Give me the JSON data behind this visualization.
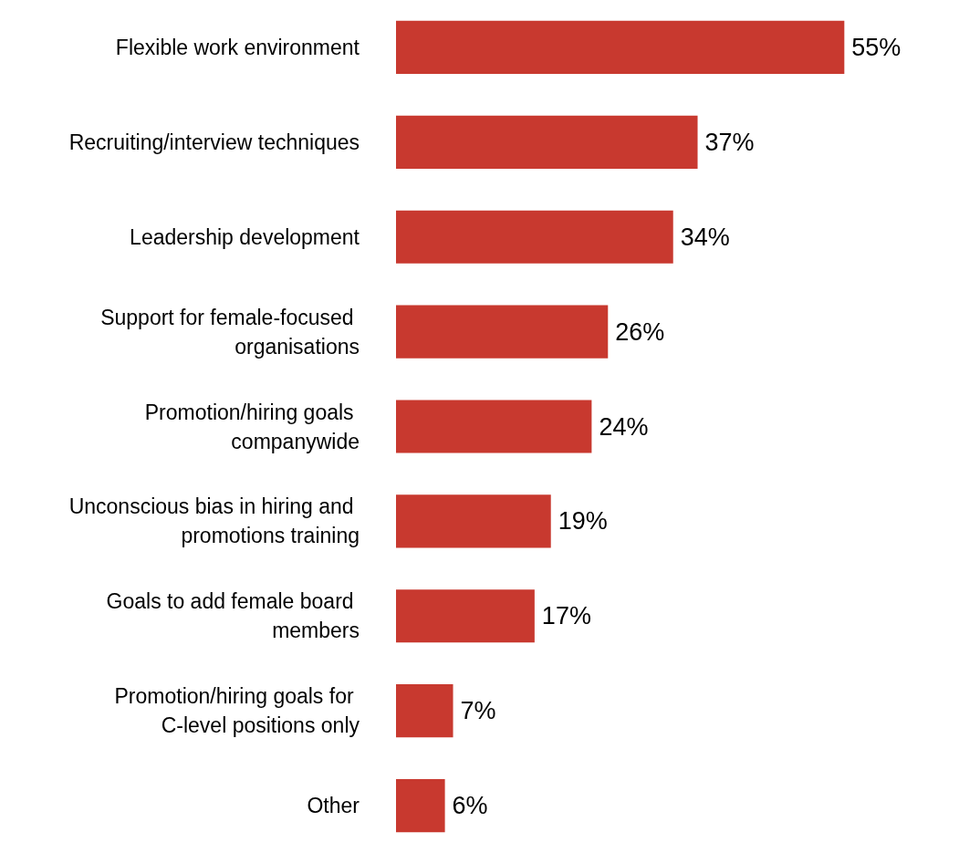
{
  "chart_data": {
    "type": "bar",
    "orientation": "horizontal",
    "categories": [
      "Flexible work environment",
      "Recruiting/interview techniques",
      "Leadership development",
      "Support for female-focused organisations",
      "Promotion/hiring goals companywide",
      "Unconscious bias in hiring and promotions training",
      "Goals to add female board members",
      "Promotion/hiring goals for C-level positions only",
      "Other"
    ],
    "values": [
      55,
      37,
      34,
      26,
      24,
      19,
      17,
      7,
      6
    ],
    "value_labels": [
      "55%",
      "37%",
      "34%",
      "26%",
      "24%",
      "19%",
      "17%",
      "7%",
      "6%"
    ],
    "color": "#c8392f"
  }
}
